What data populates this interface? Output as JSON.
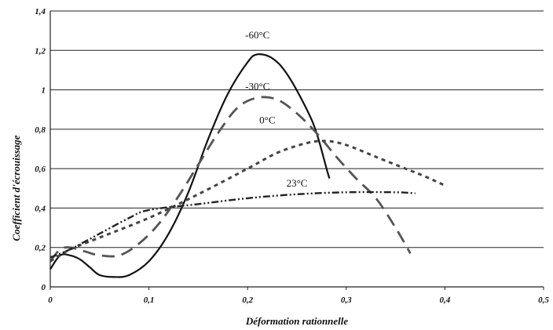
{
  "chart_data": {
    "type": "line",
    "title": "",
    "xlabel": "Déformation rationnelle",
    "ylabel": "Coefficient d'écrouissage",
    "xlim": [
      0,
      0.5
    ],
    "ylim": [
      0,
      1.4
    ],
    "x_ticks": [
      "0",
      "0,1",
      "0,2",
      "0,3",
      "0,4",
      "0,5"
    ],
    "y_ticks": [
      "0",
      "0,2",
      "0,4",
      "0,6",
      "0,8",
      "1",
      "1,2",
      "1,4"
    ],
    "grid": "horizontal",
    "legend": "none",
    "series": [
      {
        "name": "-60°C",
        "style": "solid",
        "color": "#111111",
        "label_at": [
          0.21,
          1.26
        ],
        "points": [
          [
            0.0,
            0.09
          ],
          [
            0.01,
            0.16
          ],
          [
            0.02,
            0.16
          ],
          [
            0.03,
            0.14
          ],
          [
            0.04,
            0.1
          ],
          [
            0.05,
            0.06
          ],
          [
            0.065,
            0.05
          ],
          [
            0.08,
            0.06
          ],
          [
            0.1,
            0.13
          ],
          [
            0.12,
            0.27
          ],
          [
            0.14,
            0.48
          ],
          [
            0.16,
            0.75
          ],
          [
            0.18,
            0.98
          ],
          [
            0.2,
            1.14
          ],
          [
            0.21,
            1.18
          ],
          [
            0.225,
            1.16
          ],
          [
            0.24,
            1.08
          ],
          [
            0.26,
            0.9
          ],
          [
            0.27,
            0.78
          ],
          [
            0.28,
            0.6
          ],
          [
            0.283,
            0.55
          ]
        ]
      },
      {
        "name": "-30°C",
        "style": "long-dash",
        "color": "#555555",
        "label_at": [
          0.21,
          1.0
        ],
        "points": [
          [
            0.0,
            0.13
          ],
          [
            0.01,
            0.19
          ],
          [
            0.02,
            0.2
          ],
          [
            0.035,
            0.18
          ],
          [
            0.05,
            0.16
          ],
          [
            0.07,
            0.16
          ],
          [
            0.09,
            0.22
          ],
          [
            0.11,
            0.32
          ],
          [
            0.13,
            0.46
          ],
          [
            0.15,
            0.62
          ],
          [
            0.17,
            0.78
          ],
          [
            0.19,
            0.91
          ],
          [
            0.21,
            0.96
          ],
          [
            0.23,
            0.95
          ],
          [
            0.25,
            0.88
          ],
          [
            0.27,
            0.78
          ],
          [
            0.29,
            0.66
          ],
          [
            0.31,
            0.55
          ],
          [
            0.33,
            0.45
          ],
          [
            0.35,
            0.3
          ],
          [
            0.365,
            0.17
          ]
        ]
      },
      {
        "name": "0°C",
        "style": "short-dash",
        "color": "#444444",
        "label_at": [
          0.22,
          0.83
        ],
        "points": [
          [
            0.0,
            0.13
          ],
          [
            0.02,
            0.19
          ],
          [
            0.05,
            0.25
          ],
          [
            0.1,
            0.35
          ],
          [
            0.15,
            0.47
          ],
          [
            0.2,
            0.6
          ],
          [
            0.23,
            0.68
          ],
          [
            0.26,
            0.73
          ],
          [
            0.28,
            0.74
          ],
          [
            0.3,
            0.72
          ],
          [
            0.33,
            0.66
          ],
          [
            0.36,
            0.6
          ],
          [
            0.38,
            0.56
          ],
          [
            0.402,
            0.51
          ]
        ]
      },
      {
        "name": "23°C",
        "style": "dash-dot",
        "color": "#222222",
        "label_at": [
          0.25,
          0.51
        ],
        "points": [
          [
            0.0,
            0.15
          ],
          [
            0.02,
            0.19
          ],
          [
            0.05,
            0.27
          ],
          [
            0.08,
            0.35
          ],
          [
            0.1,
            0.39
          ],
          [
            0.15,
            0.42
          ],
          [
            0.2,
            0.45
          ],
          [
            0.25,
            0.47
          ],
          [
            0.3,
            0.48
          ],
          [
            0.35,
            0.48
          ],
          [
            0.37,
            0.475
          ]
        ]
      }
    ]
  }
}
